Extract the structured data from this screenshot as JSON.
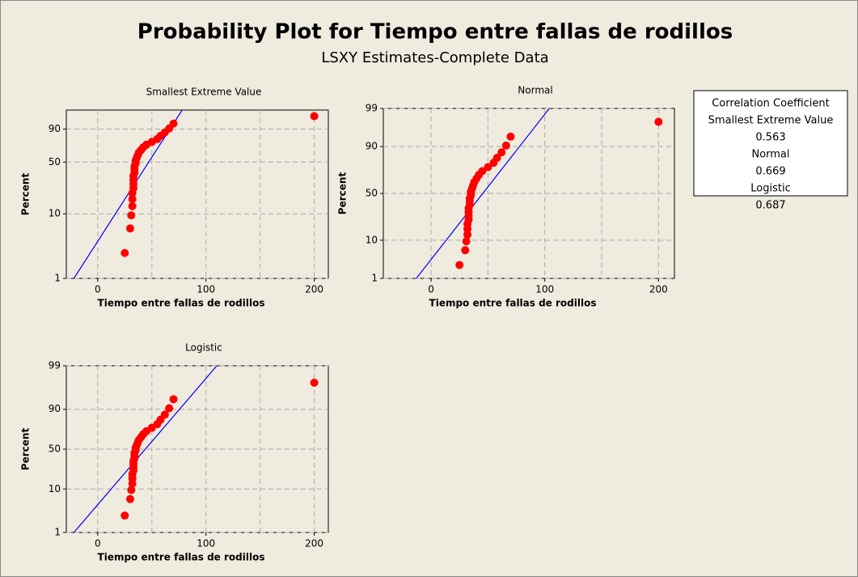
{
  "title": "Probability Plot for Tiempo entre fallas de rodillos",
  "subtitle": "LSXY Estimates-Complete Data",
  "legend_box": {
    "title": "Correlation Coefficient",
    "entries": [
      {
        "name": "Smallest Extreme Value",
        "value": 0.563
      },
      {
        "name": "Normal",
        "value": 0.669
      },
      {
        "name": "Logistic",
        "value": 0.687
      }
    ]
  },
  "chart_data": [
    {
      "type": "probability",
      "scale": "sev",
      "title": "Smallest Extreme Value",
      "xlabel": "Tiempo entre fallas de rodillos",
      "ylabel": "Percent",
      "x": [
        25,
        30,
        31,
        32,
        32,
        32,
        33,
        33,
        33,
        33,
        34,
        34,
        34,
        35,
        35,
        36,
        37,
        38,
        40,
        42,
        45,
        50,
        55,
        58,
        62,
        66,
        70,
        200
      ],
      "y": [
        2.5,
        6.0,
        9.5,
        13.0,
        16.5,
        20.1,
        23.6,
        27.1,
        30.6,
        34.2,
        37.7,
        41.2,
        44.7,
        48.2,
        51.8,
        55.3,
        58.8,
        62.3,
        65.8,
        69.4,
        72.9,
        76.4,
        79.9,
        83.5,
        87.0,
        90.5,
        94.0,
        97.5
      ],
      "fit_line": {
        "x": [
          -22,
          78
        ],
        "y": [
          1,
          99
        ]
      },
      "xlim": [
        -29,
        213
      ],
      "ylim": [
        1,
        99
      ],
      "xticks": [
        0,
        100,
        200
      ],
      "xgrid": [
        0,
        50,
        100,
        150,
        200
      ],
      "yticks": [
        1,
        10,
        50,
        90
      ],
      "point_color": "#ff0000",
      "line_color": "#0000ff"
    },
    {
      "type": "probability",
      "scale": "normal",
      "title": "Normal",
      "xlabel": "Tiempo entre fallas de rodillos",
      "ylabel": "Percent",
      "x": [
        25,
        30,
        31,
        32,
        32,
        32,
        33,
        33,
        33,
        33,
        34,
        34,
        34,
        35,
        35,
        36,
        37,
        38,
        40,
        42,
        45,
        50,
        55,
        58,
        62,
        66,
        70,
        200
      ],
      "y": [
        2.5,
        6.0,
        9.5,
        13.0,
        16.5,
        20.1,
        23.6,
        27.1,
        30.6,
        34.2,
        37.7,
        41.2,
        44.7,
        48.2,
        51.8,
        55.3,
        58.8,
        62.3,
        65.8,
        69.4,
        72.9,
        76.4,
        79.9,
        83.5,
        87.0,
        90.5,
        94.0,
        97.5
      ],
      "fit_line": {
        "x": [
          -13,
          104
        ],
        "y": [
          1,
          99
        ]
      },
      "xlim": [
        -42,
        214
      ],
      "ylim": [
        1,
        99
      ],
      "xticks": [
        0,
        100,
        200
      ],
      "xgrid": [
        0,
        50,
        100,
        150,
        200
      ],
      "yticks": [
        1,
        10,
        50,
        90,
        99
      ],
      "point_color": "#ff0000",
      "line_color": "#0000ff"
    },
    {
      "type": "probability",
      "scale": "logistic",
      "title": "Logistic",
      "xlabel": "Tiempo entre fallas de rodillos",
      "ylabel": "Percent",
      "x": [
        25,
        30,
        31,
        32,
        32,
        32,
        33,
        33,
        33,
        33,
        34,
        34,
        34,
        35,
        35,
        36,
        37,
        38,
        40,
        42,
        45,
        50,
        55,
        58,
        62,
        66,
        70,
        200
      ],
      "y": [
        2.5,
        6.0,
        9.5,
        13.0,
        16.5,
        20.1,
        23.6,
        27.1,
        30.6,
        34.2,
        37.7,
        41.2,
        44.7,
        48.2,
        51.8,
        55.3,
        58.8,
        62.3,
        65.8,
        69.4,
        72.9,
        76.4,
        79.9,
        83.5,
        87.0,
        90.5,
        94.0,
        97.5
      ],
      "fit_line": {
        "x": [
          -22,
          110
        ],
        "y": [
          1,
          99
        ]
      },
      "xlim": [
        -29,
        213
      ],
      "ylim": [
        1,
        99
      ],
      "xticks": [
        0,
        100,
        200
      ],
      "xgrid": [
        0,
        50,
        100,
        150,
        200
      ],
      "yticks": [
        1,
        10,
        50,
        90,
        99
      ],
      "point_color": "#ff0000",
      "line_color": "#0000ff"
    }
  ]
}
